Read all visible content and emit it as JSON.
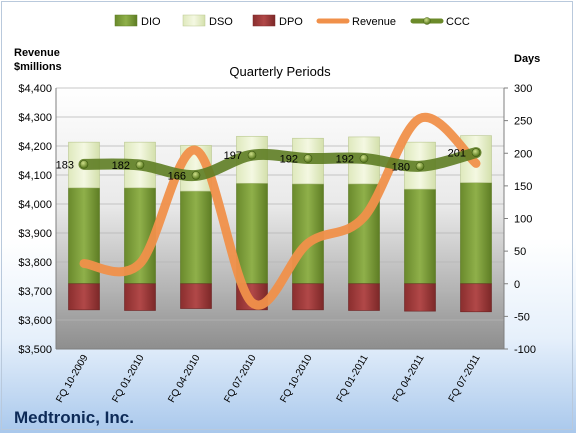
{
  "chart_data": {
    "type": "bar",
    "title": "Quarterly Periods",
    "company": "Medtronic, Inc.",
    "left_axis_label_line1": "Revenue",
    "left_axis_label_line2": "$millions",
    "right_axis_label": "Days",
    "categories": [
      "FQ 10-2009",
      "FQ 01-2010",
      "FQ 04-2010",
      "FQ 07-2010",
      "FQ 10-2010",
      "FQ 01-2011",
      "FQ 04-2011",
      "FQ 07-2011"
    ],
    "left_axis": {
      "min": 3500,
      "max": 4400,
      "step": 100,
      "tick_labels": [
        "$3,500",
        "$3,600",
        "$3,700",
        "$3,800",
        "$3,900",
        "$4,000",
        "$4,100",
        "$4,200",
        "$4,300",
        "$4,400"
      ]
    },
    "right_axis": {
      "min": -100,
      "max": 300,
      "step": 50,
      "tick_labels": [
        "-100",
        "-50",
        "0",
        "50",
        "100",
        "150",
        "200",
        "250",
        "300"
      ]
    },
    "legend_position": "top",
    "series": [
      {
        "name": "DIO",
        "type": "bar",
        "axis": "right",
        "color": "#7a9a3a",
        "values": [
          147,
          147,
          142,
          154,
          153,
          153,
          145,
          155
        ]
      },
      {
        "name": "DSO",
        "type": "bar",
        "axis": "right",
        "color": "#e6efc8",
        "values": [
          70,
          70,
          70,
          72,
          70,
          72,
          72,
          72
        ]
      },
      {
        "name": "DPO",
        "type": "bar",
        "axis": "right",
        "color": "#9a3535",
        "values": [
          -40,
          -41,
          -38,
          -40,
          -40,
          -41,
          -42,
          -43
        ]
      },
      {
        "name": "Revenue",
        "type": "line",
        "axis": "left",
        "color": "#f0904a",
        "values": [
          3795,
          3795,
          4185,
          3660,
          3865,
          3955,
          4295,
          4140
        ]
      },
      {
        "name": "CCC",
        "type": "line",
        "axis": "right",
        "color": "#6b8a2a",
        "values": [
          183,
          182,
          166,
          197,
          192,
          192,
          180,
          201
        ],
        "data_labels": [
          "183",
          "182",
          "166",
          "197",
          "192",
          "192",
          "180",
          "201"
        ]
      }
    ]
  }
}
